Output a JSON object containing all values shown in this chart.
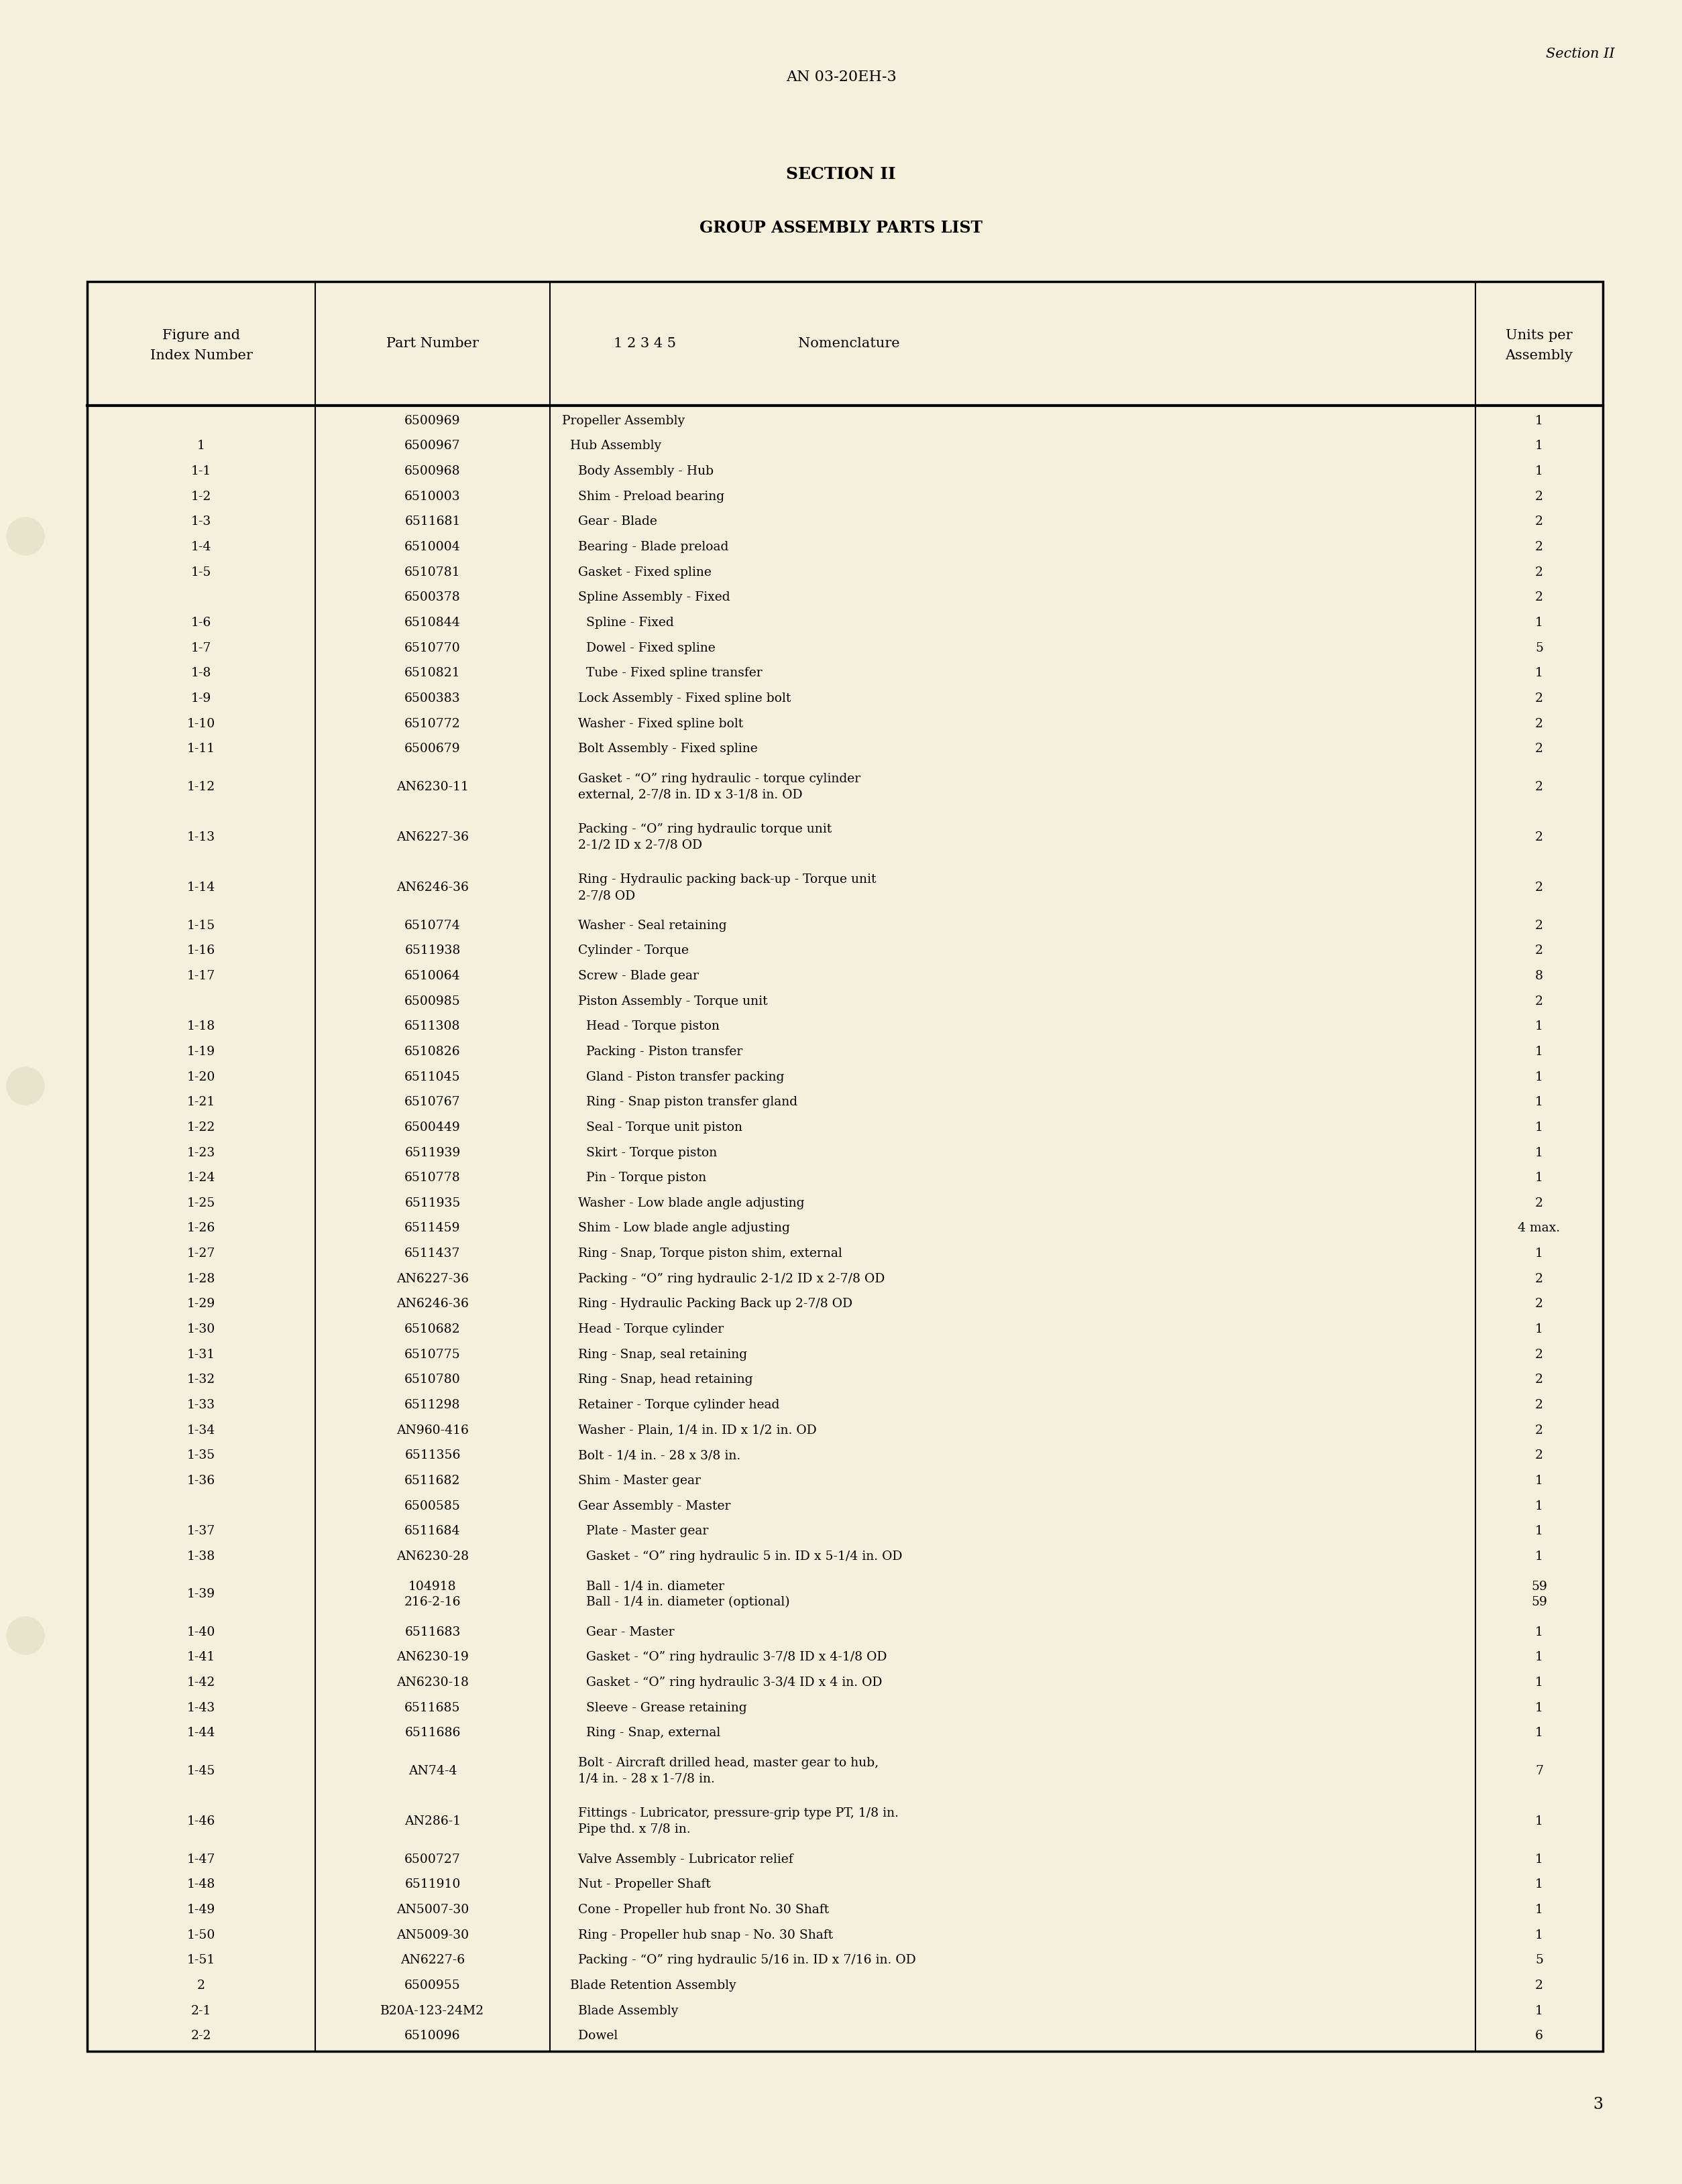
{
  "bg_color": "#f5f0dc",
  "page_header_center": "AN 03-20EH-3",
  "page_header_right": "Section II",
  "title1": "SECTION II",
  "title2": "GROUP ASSEMBLY PARTS LIST",
  "rows": [
    [
      "",
      "6500969",
      "Propeller Assembly",
      "1"
    ],
    [
      "1",
      "6500967",
      "  Hub Assembly",
      "1"
    ],
    [
      "1-1",
      "6500968",
      "    Body Assembly - Hub",
      "1"
    ],
    [
      "1-2",
      "6510003",
      "    Shim - Preload bearing",
      "2"
    ],
    [
      "1-3",
      "6511681",
      "    Gear - Blade",
      "2"
    ],
    [
      "1-4",
      "6510004",
      "    Bearing - Blade preload",
      "2"
    ],
    [
      "1-5",
      "6510781",
      "    Gasket - Fixed spline",
      "2"
    ],
    [
      "",
      "6500378",
      "    Spline Assembly - Fixed",
      "2"
    ],
    [
      "1-6",
      "6510844",
      "      Spline - Fixed",
      "1"
    ],
    [
      "1-7",
      "6510770",
      "      Dowel - Fixed spline",
      "5"
    ],
    [
      "1-8",
      "6510821",
      "      Tube - Fixed spline transfer",
      "1"
    ],
    [
      "1-9",
      "6500383",
      "    Lock Assembly - Fixed spline bolt",
      "2"
    ],
    [
      "1-10",
      "6510772",
      "    Washer - Fixed spline bolt",
      "2"
    ],
    [
      "1-11",
      "6500679",
      "    Bolt Assembly - Fixed spline",
      "2"
    ],
    [
      "1-12",
      "AN6230-11",
      "    Gasket - “O” ring hydraulic - torque cylinder\n    external, 2-7/8 in. ID x 3-1/8 in. OD",
      "2"
    ],
    [
      "1-13",
      "AN6227-36",
      "    Packing - “O” ring hydraulic torque unit\n    2-1/2 ID x 2-7/8 OD",
      "2"
    ],
    [
      "1-14",
      "AN6246-36",
      "    Ring - Hydraulic packing back-up - Torque unit\n    2-7/8 OD",
      "2"
    ],
    [
      "1-15",
      "6510774",
      "    Washer - Seal retaining",
      "2"
    ],
    [
      "1-16",
      "6511938",
      "    Cylinder - Torque",
      "2"
    ],
    [
      "1-17",
      "6510064",
      "    Screw - Blade gear",
      "8"
    ],
    [
      "",
      "6500985",
      "    Piston Assembly - Torque unit",
      "2"
    ],
    [
      "1-18",
      "6511308",
      "      Head - Torque piston",
      "1"
    ],
    [
      "1-19",
      "6510826",
      "      Packing - Piston transfer",
      "1"
    ],
    [
      "1-20",
      "6511045",
      "      Gland - Piston transfer packing",
      "1"
    ],
    [
      "1-21",
      "6510767",
      "      Ring - Snap piston transfer gland",
      "1"
    ],
    [
      "1-22",
      "6500449",
      "      Seal - Torque unit piston",
      "1"
    ],
    [
      "1-23",
      "6511939",
      "      Skirt - Torque piston",
      "1"
    ],
    [
      "1-24",
      "6510778",
      "      Pin - Torque piston",
      "1"
    ],
    [
      "1-25",
      "6511935",
      "    Washer - Low blade angle adjusting",
      "2"
    ],
    [
      "1-26",
      "6511459",
      "    Shim - Low blade angle adjusting",
      "4 max."
    ],
    [
      "1-27",
      "6511437",
      "    Ring - Snap, Torque piston shim, external",
      "1"
    ],
    [
      "1-28",
      "AN6227-36",
      "    Packing - “O” ring hydraulic 2-1/2 ID x 2-7/8 OD",
      "2"
    ],
    [
      "1-29",
      "AN6246-36",
      "    Ring - Hydraulic Packing Back up 2-7/8 OD",
      "2"
    ],
    [
      "1-30",
      "6510682",
      "    Head - Torque cylinder",
      "1"
    ],
    [
      "1-31",
      "6510775",
      "    Ring - Snap, seal retaining",
      "2"
    ],
    [
      "1-32",
      "6510780",
      "    Ring - Snap, head retaining",
      "2"
    ],
    [
      "1-33",
      "6511298",
      "    Retainer - Torque cylinder head",
      "2"
    ],
    [
      "1-34",
      "AN960-416",
      "    Washer - Plain, 1/4 in. ID x 1/2 in. OD",
      "2"
    ],
    [
      "1-35",
      "6511356",
      "    Bolt - 1/4 in. - 28 x 3/8 in.",
      "2"
    ],
    [
      "1-36",
      "6511682",
      "    Shim - Master gear",
      "1"
    ],
    [
      "",
      "6500585",
      "    Gear Assembly - Master",
      "1"
    ],
    [
      "1-37",
      "6511684",
      "      Plate - Master gear",
      "1"
    ],
    [
      "1-38",
      "AN6230-28",
      "      Gasket - “O” ring hydraulic 5 in. ID x 5-1/4 in. OD",
      "1"
    ],
    [
      "1-39",
      "104918\n216-2-16",
      "      Ball - 1/4 in. diameter\n      Ball - 1/4 in. diameter (optional)",
      "59\n59"
    ],
    [
      "1-40",
      "6511683",
      "      Gear - Master",
      "1"
    ],
    [
      "1-41",
      "AN6230-19",
      "      Gasket - “O” ring hydraulic 3-7/8 ID x 4-1/8 OD",
      "1"
    ],
    [
      "1-42",
      "AN6230-18",
      "      Gasket - “O” ring hydraulic 3-3/4 ID x 4 in. OD",
      "1"
    ],
    [
      "1-43",
      "6511685",
      "      Sleeve - Grease retaining",
      "1"
    ],
    [
      "1-44",
      "6511686",
      "      Ring - Snap, external",
      "1"
    ],
    [
      "1-45",
      "AN74-4",
      "    Bolt - Aircraft drilled head, master gear to hub,\n    1/4 in. - 28 x 1-7/8 in.",
      "7"
    ],
    [
      "1-46",
      "AN286-1",
      "    Fittings - Lubricator, pressure-grip type PT, 1/8 in.\n    Pipe thd. x 7/8 in.",
      "1"
    ],
    [
      "1-47",
      "6500727",
      "    Valve Assembly - Lubricator relief",
      "1"
    ],
    [
      "1-48",
      "6511910",
      "    Nut - Propeller Shaft",
      "1"
    ],
    [
      "1-49",
      "AN5007-30",
      "    Cone - Propeller hub front No. 30 Shaft",
      "1"
    ],
    [
      "1-50",
      "AN5009-30",
      "    Ring - Propeller hub snap - No. 30 Shaft",
      "1"
    ],
    [
      "1-51",
      "AN6227-6",
      "    Packing - “O” ring hydraulic 5/16 in. ID x 7/16 in. OD",
      "5"
    ],
    [
      "2",
      "6500955",
      "  Blade Retention Assembly",
      "2"
    ],
    [
      "2-1",
      "B20A-123-24M2",
      "    Blade Assembly",
      "1"
    ],
    [
      "2-2",
      "6510096",
      "    Dowel",
      "6"
    ]
  ],
  "page_number": "3"
}
